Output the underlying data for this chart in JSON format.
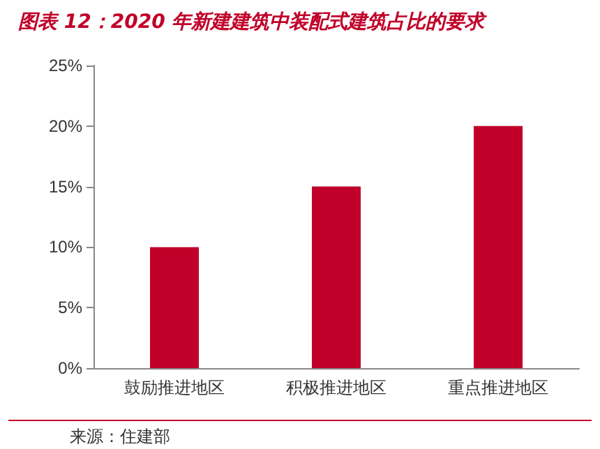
{
  "chart_data": {
    "type": "bar",
    "title": "图表 12：2020 年新建建筑中装配式建筑占比的要求",
    "categories": [
      "鼓励推进地区",
      "积极推进地区",
      "重点推进地区"
    ],
    "values": [
      10,
      15,
      20
    ],
    "color": "#c00029",
    "ylim": [
      0,
      25
    ],
    "yticks": [
      {
        "value": 0,
        "label": "0%"
      },
      {
        "value": 5,
        "label": "5%"
      },
      {
        "value": 10,
        "label": "10%"
      },
      {
        "value": 15,
        "label": "15%"
      },
      {
        "value": 20,
        "label": "20%"
      },
      {
        "value": 25,
        "label": "25%"
      }
    ],
    "grid": false,
    "annotations": [
      "来源：住建部"
    ]
  }
}
